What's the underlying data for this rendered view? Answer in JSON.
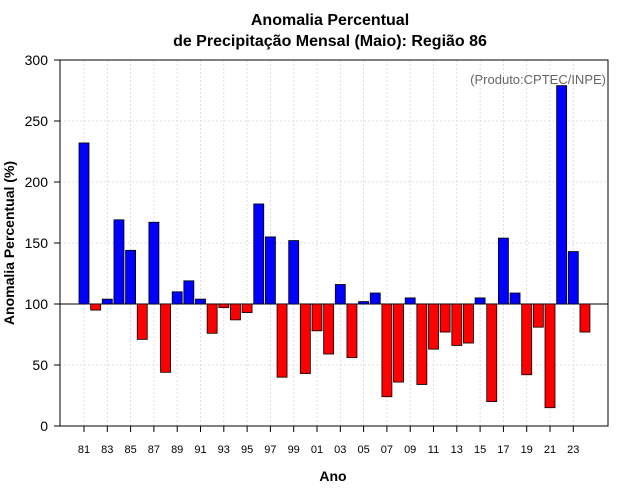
{
  "chart_data": {
    "type": "bar",
    "title_line1": "Anomalia Percentual",
    "title_line2": "de Precipitação Mensal (Maio): Região 86",
    "xlabel": "Ano",
    "ylabel": "Anomalia Percentual (%)",
    "credit": "(Produto:CPTEC/INPE)",
    "baseline": 100,
    "ylim": [
      0,
      300
    ],
    "yticks": [
      0,
      50,
      100,
      150,
      200,
      250,
      300
    ],
    "grid": true,
    "colors": {
      "above": "#0000ff",
      "below": "#ff0000"
    },
    "categories": [
      "81",
      "82",
      "83",
      "84",
      "85",
      "86",
      "87",
      "88",
      "89",
      "90",
      "91",
      "92",
      "93",
      "94",
      "95",
      "96",
      "97",
      "98",
      "99",
      "00",
      "01",
      "02",
      "03",
      "04",
      "05",
      "06",
      "07",
      "08",
      "09",
      "10",
      "11",
      "12",
      "13",
      "14",
      "15",
      "16",
      "17",
      "18",
      "19",
      "20",
      "21",
      "22",
      "23",
      "24"
    ],
    "tick_labels": [
      "81",
      "83",
      "85",
      "87",
      "89",
      "91",
      "93",
      "95",
      "97",
      "99",
      "01",
      "03",
      "05",
      "07",
      "09",
      "11",
      "13",
      "15",
      "17",
      "19",
      "21",
      "23"
    ],
    "values": [
      232,
      95,
      104,
      169,
      144,
      71,
      167,
      44,
      110,
      119,
      104,
      76,
      97,
      87,
      93,
      182,
      155,
      40,
      152,
      43,
      78,
      59,
      116,
      56,
      102,
      109,
      24,
      36,
      105,
      34,
      63,
      77,
      66,
      68,
      105,
      20,
      154,
      109,
      42,
      81,
      15,
      279,
      143,
      77
    ]
  }
}
